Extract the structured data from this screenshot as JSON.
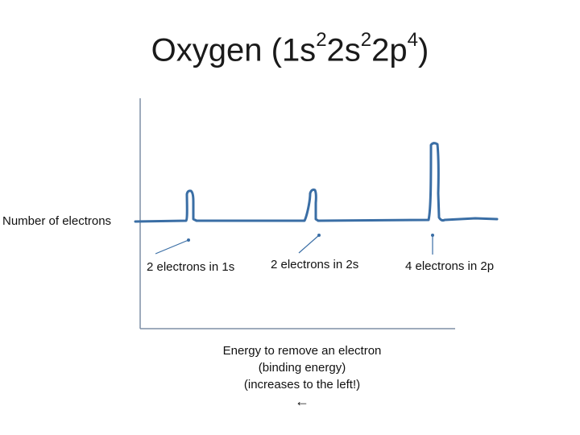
{
  "title": {
    "element": "Oxygen",
    "open": " (",
    "orbitals": [
      {
        "label": "1s",
        "count": "2"
      },
      {
        "label": "2s",
        "count": "2"
      },
      {
        "label": "2p",
        "count": "4"
      }
    ],
    "close": ")"
  },
  "axis": {
    "y_label": "Number of electrons"
  },
  "peaks": [
    {
      "label": "2 electrons in 1s"
    },
    {
      "label": "2 electrons in 2s"
    },
    {
      "label": "4 electrons in 2p"
    }
  ],
  "x_caption": {
    "line1": "Energy to remove an electron",
    "line2": "(binding energy)",
    "line3": "(increases to the left!)",
    "arrow": "←"
  },
  "colors": {
    "line": "#3a6ea5",
    "axis": "#7f8fa6",
    "text": "#111111"
  }
}
